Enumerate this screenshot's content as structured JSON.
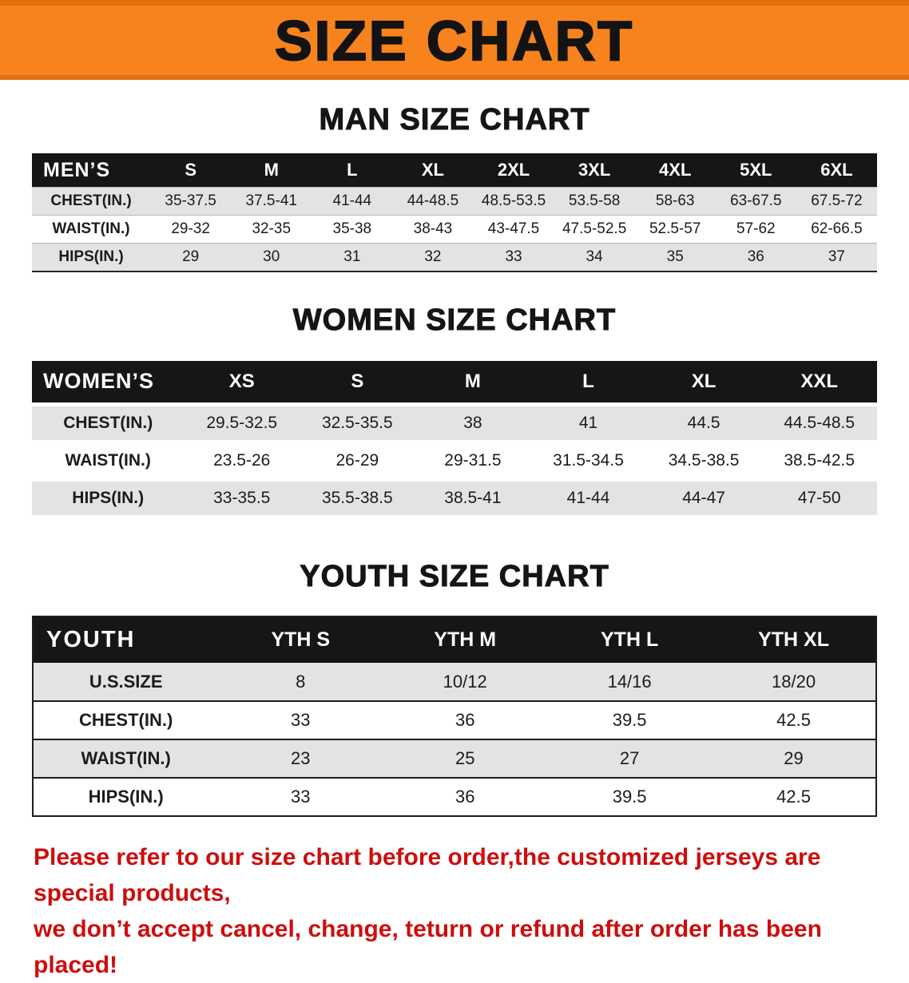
{
  "banner": {
    "title": "SIZE CHART"
  },
  "colors": {
    "banner_orange": "#f6831d",
    "banner_edge_orange": "#e0700e",
    "table_header_black": "#161616",
    "shaded_row_gray": "#e3e3e3",
    "footer_red": "#cd0e0e"
  },
  "men": {
    "heading": "MAN SIZE CHART",
    "corner": "MEN’S",
    "columns": [
      "S",
      "M",
      "L",
      "XL",
      "2XL",
      "3XL",
      "4XL",
      "5XL",
      "6XL"
    ],
    "rows": [
      {
        "label": "CHEST(IN.)",
        "values": [
          "35-37.5",
          "37.5-41",
          "41-44",
          "44-48.5",
          "48.5-53.5",
          "53.5-58",
          "58-63",
          "63-67.5",
          "67.5-72"
        ]
      },
      {
        "label": "WAIST(IN.)",
        "values": [
          "29-32",
          "32-35",
          "35-38",
          "38-43",
          "43-47.5",
          "47.5-52.5",
          "52.5-57",
          "57-62",
          "62-66.5"
        ]
      },
      {
        "label": "HIPS(IN.)",
        "values": [
          "29",
          "30",
          "31",
          "32",
          "33",
          "34",
          "35",
          "36",
          "37"
        ]
      }
    ]
  },
  "women": {
    "heading": "WOMEN SIZE CHART",
    "corner": "WOMEN’S",
    "columns": [
      "XS",
      "S",
      "M",
      "L",
      "XL",
      "XXL"
    ],
    "rows": [
      {
        "label": "CHEST(IN.)",
        "values": [
          "29.5-32.5",
          "32.5-35.5",
          "38",
          "41",
          "44.5",
          "44.5-48.5"
        ]
      },
      {
        "label": "WAIST(IN.)",
        "values": [
          "23.5-26",
          "26-29",
          "29-31.5",
          "31.5-34.5",
          "34.5-38.5",
          "38.5-42.5"
        ]
      },
      {
        "label": "HIPS(IN.)",
        "values": [
          "33-35.5",
          "35.5-38.5",
          "38.5-41",
          "41-44",
          "44-47",
          "47-50"
        ]
      }
    ]
  },
  "youth": {
    "heading": "YOUTH SIZE CHART",
    "corner": "YOUTH",
    "columns": [
      "YTH S",
      "YTH M",
      "YTH L",
      "YTH XL"
    ],
    "rows": [
      {
        "label": "U.S.SIZE",
        "values": [
          "8",
          "10/12",
          "14/16",
          "18/20"
        ]
      },
      {
        "label": "CHEST(IN.)",
        "values": [
          "33",
          "36",
          "39.5",
          "42.5"
        ]
      },
      {
        "label": "WAIST(IN.)",
        "values": [
          "23",
          "25",
          "27",
          "29"
        ]
      },
      {
        "label": "HIPS(IN.)",
        "values": [
          "33",
          "36",
          "39.5",
          "42.5"
        ]
      }
    ]
  },
  "footer": {
    "line1": "Please refer to our size chart before order,the customized jerseys are special products,",
    "line2": "we don’t accept cancel, change, teturn or refund after order has been placed!"
  }
}
